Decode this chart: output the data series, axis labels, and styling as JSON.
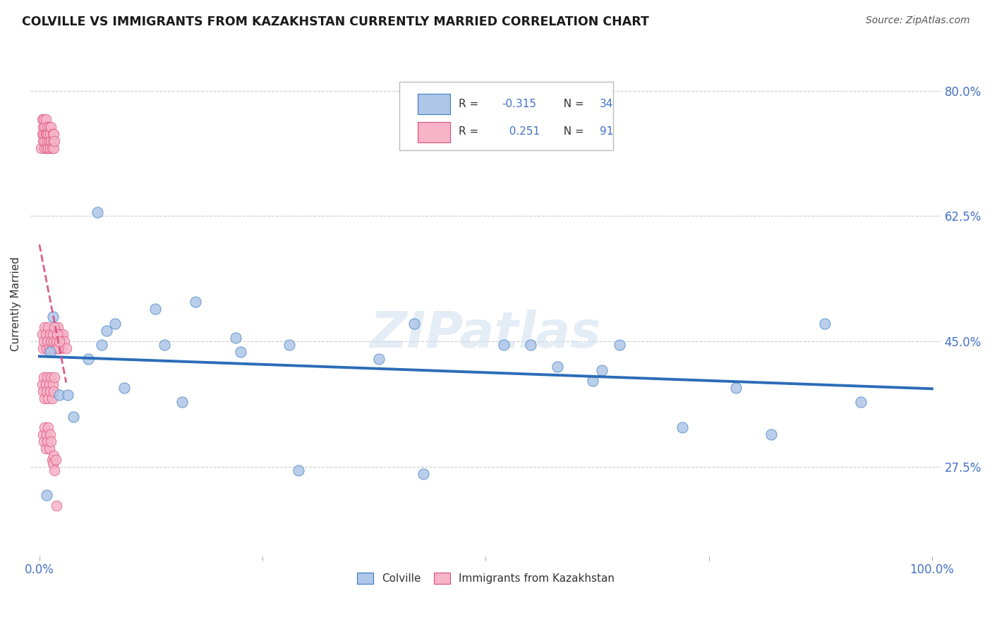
{
  "title": "COLVILLE VS IMMIGRANTS FROM KAZAKHSTAN CURRENTLY MARRIED CORRELATION CHART",
  "source": "Source: ZipAtlas.com",
  "ylabel": "Currently Married",
  "R1": -0.315,
  "N1": 34,
  "R2": 0.251,
  "N2": 91,
  "legend_label1": "Colville",
  "legend_label2": "Immigrants from Kazakhstan",
  "colville_color": "#aec6e8",
  "colville_edge": "#3a7abf",
  "kazakhstan_color": "#f7b3c8",
  "kazakhstan_edge": "#d94f7a",
  "colville_line_color": "#2b6cb8",
  "kazakhstan_line_color": "#d94f7a",
  "colville_x": [
    0.008,
    0.012,
    0.015,
    0.022,
    0.032,
    0.038,
    0.055,
    0.065,
    0.07,
    0.075,
    0.085,
    0.095,
    0.13,
    0.14,
    0.16,
    0.175,
    0.22,
    0.225,
    0.28,
    0.29,
    0.38,
    0.42,
    0.43,
    0.52,
    0.55,
    0.58,
    0.62,
    0.63,
    0.65,
    0.72,
    0.78,
    0.82,
    0.88,
    0.92
  ],
  "colville_y": [
    0.235,
    0.435,
    0.485,
    0.375,
    0.375,
    0.345,
    0.425,
    0.63,
    0.445,
    0.465,
    0.475,
    0.385,
    0.495,
    0.445,
    0.365,
    0.505,
    0.455,
    0.435,
    0.445,
    0.27,
    0.425,
    0.475,
    0.265,
    0.445,
    0.445,
    0.415,
    0.395,
    0.41,
    0.445,
    0.33,
    0.385,
    0.32,
    0.475,
    0.365
  ],
  "kaz_x": [
    0.002,
    0.003,
    0.003,
    0.004,
    0.004,
    0.005,
    0.005,
    0.006,
    0.006,
    0.006,
    0.007,
    0.007,
    0.008,
    0.008,
    0.009,
    0.009,
    0.01,
    0.01,
    0.011,
    0.011,
    0.012,
    0.012,
    0.013,
    0.013,
    0.014,
    0.015,
    0.015,
    0.016,
    0.016,
    0.017,
    0.018,
    0.019,
    0.02,
    0.021,
    0.022,
    0.023,
    0.025,
    0.026,
    0.028,
    0.03,
    0.003,
    0.004,
    0.005,
    0.006,
    0.007,
    0.008,
    0.009,
    0.01,
    0.011,
    0.012,
    0.013,
    0.014,
    0.015,
    0.016,
    0.017,
    0.018,
    0.019,
    0.02,
    0.021,
    0.022,
    0.003,
    0.004,
    0.005,
    0.006,
    0.007,
    0.008,
    0.009,
    0.01,
    0.011,
    0.012,
    0.013,
    0.014,
    0.015,
    0.016,
    0.017,
    0.004,
    0.005,
    0.006,
    0.007,
    0.008,
    0.009,
    0.01,
    0.011,
    0.012,
    0.013,
    0.014,
    0.015,
    0.016,
    0.017,
    0.018,
    0.019
  ],
  "kaz_y": [
    0.72,
    0.74,
    0.76,
    0.73,
    0.75,
    0.74,
    0.76,
    0.72,
    0.73,
    0.75,
    0.74,
    0.76,
    0.72,
    0.74,
    0.73,
    0.75,
    0.72,
    0.74,
    0.73,
    0.75,
    0.72,
    0.74,
    0.73,
    0.75,
    0.72,
    0.74,
    0.73,
    0.72,
    0.74,
    0.73,
    0.44,
    0.46,
    0.45,
    0.47,
    0.44,
    0.46,
    0.44,
    0.46,
    0.45,
    0.44,
    0.46,
    0.44,
    0.45,
    0.47,
    0.46,
    0.44,
    0.45,
    0.47,
    0.44,
    0.46,
    0.45,
    0.44,
    0.46,
    0.45,
    0.47,
    0.44,
    0.45,
    0.46,
    0.44,
    0.45,
    0.39,
    0.38,
    0.4,
    0.37,
    0.39,
    0.38,
    0.4,
    0.37,
    0.39,
    0.38,
    0.4,
    0.37,
    0.39,
    0.38,
    0.4,
    0.32,
    0.31,
    0.33,
    0.3,
    0.32,
    0.31,
    0.33,
    0.3,
    0.32,
    0.31,
    0.285,
    0.28,
    0.29,
    0.27,
    0.285,
    0.22
  ],
  "ylim": [
    0.15,
    0.855
  ],
  "xlim": [
    -0.01,
    1.01
  ],
  "yticks": [
    0.275,
    0.45,
    0.625,
    0.8
  ],
  "ytick_labels": [
    "27.5%",
    "45.0%",
    "62.5%",
    "80.0%"
  ],
  "xtick_labels": [
    "0.0%",
    "100.0%"
  ],
  "watermark": "ZIPatlas",
  "title_color": "#1a1a1a",
  "source_color": "#555555",
  "axis_label_color": "#333333",
  "tick_color": "#4472c4",
  "grid_color": "#cccccc"
}
